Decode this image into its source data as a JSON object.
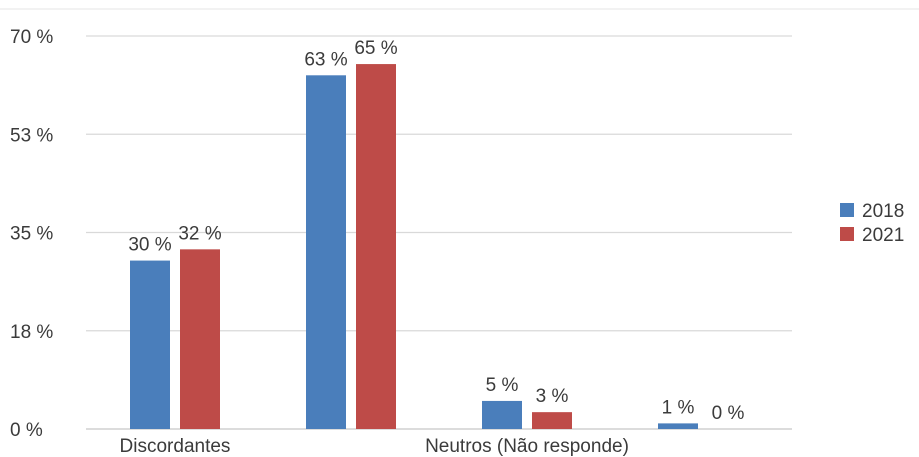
{
  "chart_data": {
    "type": "bar",
    "title": "",
    "xlabel": "",
    "ylabel": "",
    "ylim": [
      0,
      70
    ],
    "yticks": [
      0,
      17.5,
      35,
      52.5,
      70
    ],
    "ytick_labels": [
      "0 %",
      "18 %",
      "35 %",
      "53 %",
      "70 %"
    ],
    "grid": true,
    "legend_position": "right",
    "categories": [
      "Discordantes",
      "",
      "Neutros (Não responde)",
      ""
    ],
    "series": [
      {
        "name": "2018",
        "color": "#4a7ebb",
        "values": [
          30,
          63,
          5,
          1
        ],
        "labels": [
          "30 %",
          "63 %",
          "5 %",
          "1 %"
        ]
      },
      {
        "name": "2021",
        "color": "#be4b48",
        "values": [
          32,
          65,
          3,
          0
        ],
        "labels": [
          "32 %",
          "65 %",
          "3 %",
          "0 %"
        ]
      }
    ]
  }
}
